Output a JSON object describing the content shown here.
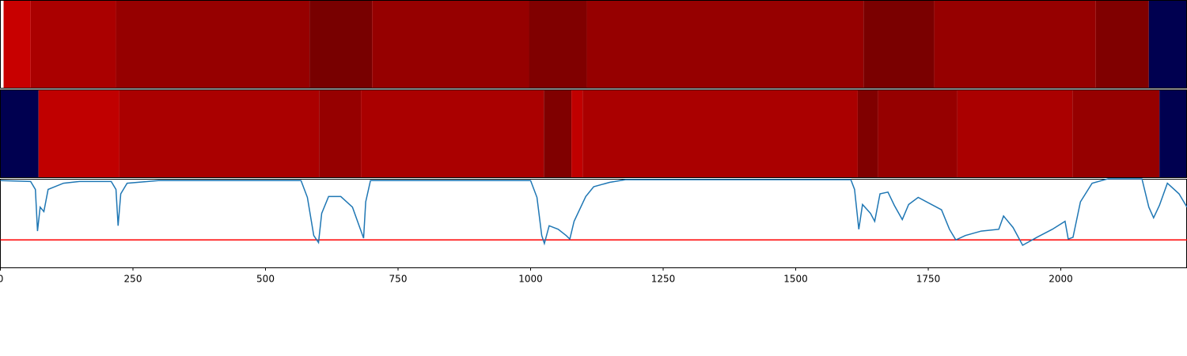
{
  "chart_data": [
    {
      "type": "heatmap",
      "bins": [
        6,
        57,
        218,
        583,
        701,
        997,
        1106,
        1628,
        1761,
        2066,
        2166,
        2238
      ],
      "colors": [
        "#c80000",
        "#aa0000",
        "#960000",
        "#780000",
        "#960000",
        "#800000",
        "#960000",
        "#7a0000",
        "#960000",
        "#800000",
        "#000050"
      ],
      "xlim": [
        0,
        2238
      ]
    },
    {
      "type": "heatmap",
      "bins": [
        0,
        72,
        224,
        601,
        680,
        1025,
        1077,
        1098,
        1617,
        1655,
        1805,
        2022,
        2186,
        2238
      ],
      "colors": [
        "#000050",
        "#c00000",
        "#aa0000",
        "#960000",
        "#aa0000",
        "#800000",
        "#c00000",
        "#aa0000",
        "#800000",
        "#960000",
        "#aa0000",
        "#960000",
        "#000050"
      ],
      "xlim": [
        0,
        2238
      ]
    },
    {
      "type": "line",
      "xlim": [
        0,
        2238
      ],
      "ylim": [
        0,
        1
      ],
      "xticks": [
        0,
        250,
        500,
        750,
        1000,
        1250,
        1500,
        1750,
        2000
      ],
      "hline": 0.31,
      "hline_color": "#ff0000",
      "color": "#1f77b4",
      "x": [
        0,
        57,
        66,
        70,
        75,
        82,
        90,
        119,
        149,
        209,
        218,
        222,
        227,
        239,
        298,
        567,
        579,
        591,
        600,
        606,
        619,
        642,
        664,
        679,
        685,
        689,
        698,
        1000,
        1012,
        1021,
        1026,
        1035,
        1052,
        1067,
        1074,
        1082,
        1104,
        1119,
        1149,
        1179,
        1604,
        1611,
        1619,
        1626,
        1641,
        1649,
        1659,
        1674,
        1686,
        1701,
        1713,
        1731,
        1775,
        1790,
        1802,
        1820,
        1850,
        1883,
        1892,
        1910,
        1928,
        1955,
        1984,
        2008,
        2014,
        2023,
        2037,
        2059,
        2089,
        2153,
        2166,
        2175,
        2186,
        2201,
        2223,
        2238
      ],
      "values": [
        0.98,
        0.97,
        0.88,
        0.41,
        0.68,
        0.63,
        0.88,
        0.95,
        0.97,
        0.97,
        0.88,
        0.47,
        0.83,
        0.95,
        0.98,
        0.98,
        0.79,
        0.36,
        0.28,
        0.61,
        0.8,
        0.8,
        0.68,
        0.43,
        0.33,
        0.74,
        0.98,
        0.98,
        0.79,
        0.36,
        0.27,
        0.47,
        0.43,
        0.36,
        0.32,
        0.52,
        0.8,
        0.91,
        0.96,
        0.99,
        0.99,
        0.88,
        0.43,
        0.71,
        0.61,
        0.52,
        0.83,
        0.85,
        0.7,
        0.54,
        0.71,
        0.79,
        0.65,
        0.43,
        0.31,
        0.36,
        0.41,
        0.43,
        0.58,
        0.45,
        0.25,
        0.34,
        0.43,
        0.52,
        0.32,
        0.34,
        0.74,
        0.95,
        1.0,
        1.0,
        0.68,
        0.56,
        0.7,
        0.95,
        0.83,
        0.68
      ]
    }
  ]
}
